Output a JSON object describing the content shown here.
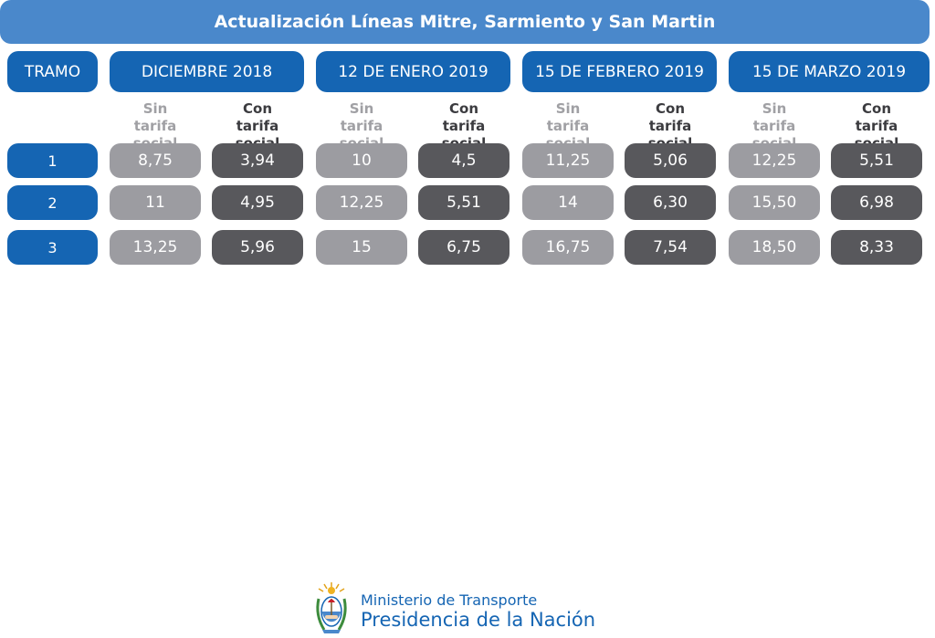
{
  "title": "Actualización Líneas Mitre, Sarmiento y San Martin",
  "tramo_label": "TRAMO",
  "periods": [
    {
      "label": "DICIEMBRE 2018"
    },
    {
      "label": "12 DE ENERO 2019"
    },
    {
      "label": "15 DE FEBRERO 2019"
    },
    {
      "label": "15 DE MARZO 2019"
    }
  ],
  "subheaders": {
    "sin_line1": "Sin",
    "sin_line2": "tarifa social",
    "con_line1": "Con",
    "con_line2": "tarifa social"
  },
  "rows": [
    {
      "tramo": "1",
      "values": [
        "8,75",
        "3,94",
        "10",
        "4,5",
        "11,25",
        "5,06",
        "12,25",
        "5,51"
      ]
    },
    {
      "tramo": "2",
      "values": [
        "11",
        "4,95",
        "12,25",
        "5,51",
        "14",
        "6,30",
        "15,50",
        "6,98"
      ]
    },
    {
      "tramo": "3",
      "values": [
        "13,25",
        "5,96",
        "15",
        "6,75",
        "16,75",
        "7,54",
        "18,50",
        "8,33"
      ]
    }
  ],
  "footer": {
    "line1": "Ministerio de Transporte",
    "line2": "Presidencia de la Nación",
    "emblem_icon": "argentina-coat-of-arms-icon"
  },
  "colors": {
    "title_blue": "#4a88cb",
    "header_blue": "#1565b3",
    "sin_gray": "#9c9ca1",
    "con_dark": "#58585c"
  }
}
